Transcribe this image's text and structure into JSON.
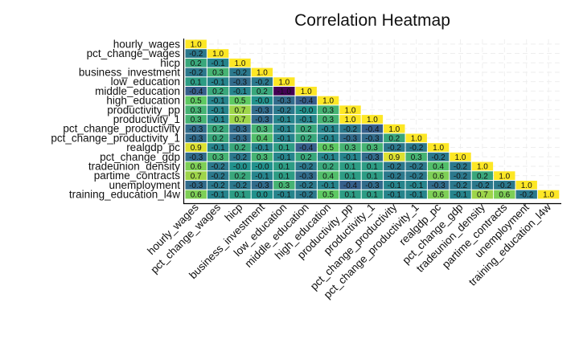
{
  "chart_data": {
    "type": "heatmap",
    "title": "Correlation Heatmap",
    "xlabel": "",
    "ylabel": "",
    "variables": [
      "hourly_wages",
      "pct_change_wages",
      "hicp",
      "business_investment",
      "low_education",
      "middle_education",
      "high_education",
      "productivity_pp",
      "productivity_1",
      "pct_change_productivity",
      "pct_change_productivity_1",
      "realgdp_pc",
      "pct_change_gdp",
      "tradeunion_density",
      "partime_contracts",
      "unemployment",
      "training_education_l4w"
    ],
    "matrix": [
      [
        "1.0"
      ],
      [
        "-0.2",
        "1.0"
      ],
      [
        "0.2",
        "-0.1",
        "1.0"
      ],
      [
        "-0.2",
        "0.3",
        "-0.2",
        "1.0"
      ],
      [
        "0.1",
        "-0.1",
        "-0.3",
        "-0.2",
        "1.0"
      ],
      [
        "-0.4",
        "0.2",
        "-0.1",
        "0.2",
        "-1.0",
        "1.0"
      ],
      [
        "0.5",
        "-0.1",
        "0.5",
        "-0.0",
        "-0.3",
        "-0.4",
        "1.0"
      ],
      [
        "0.3",
        "-0.1",
        "0.7",
        "-0.3",
        "-0.2",
        "-0.0",
        "0.3",
        "1.0"
      ],
      [
        "0.3",
        "-0.1",
        "0.7",
        "-0.3",
        "-0.1",
        "-0.1",
        "0.3",
        "1.0",
        "1.0"
      ],
      [
        "-0.3",
        "0.2",
        "-0.3",
        "0.3",
        "-0.1",
        "0.2",
        "-0.1",
        "-0.2",
        "-0.4",
        "1.0"
      ],
      [
        "-0.3",
        "0.2",
        "-0.3",
        "0.4",
        "-0.1",
        "0.2",
        "-0.1",
        "-0.3",
        "-0.3",
        "0.2",
        "1.0"
      ],
      [
        "0.9",
        "-0.1",
        "0.2",
        "-0.1",
        "0.1",
        "-0.4",
        "0.5",
        "0.3",
        "0.3",
        "-0.2",
        "-0.2",
        "1.0"
      ],
      [
        "-0.3",
        "0.3",
        "-0.2",
        "0.3",
        "-0.1",
        "0.2",
        "-0.1",
        "-0.1",
        "-0.3",
        "0.9",
        "0.3",
        "-0.2",
        "1.0"
      ],
      [
        "0.6",
        "-0.2",
        "-0.0",
        "-0.0",
        "0.1",
        "-0.2",
        "0.2",
        "0.1",
        "0.1",
        "-0.2",
        "-0.2",
        "0.4",
        "-0.2",
        "1.0"
      ],
      [
        "0.7",
        "-0.2",
        "0.2",
        "-0.1",
        "0.1",
        "-0.3",
        "0.4",
        "0.1",
        "0.1",
        "-0.2",
        "-0.2",
        "0.6",
        "-0.2",
        "0.2",
        "1.0"
      ],
      [
        "-0.3",
        "-0.2",
        "-0.2",
        "-0.3",
        "0.3",
        "-0.2",
        "-0.1",
        "-0.4",
        "-0.3",
        "-0.1",
        "-0.1",
        "-0.3",
        "-0.2",
        "-0.2",
        "-0.2",
        "1.0"
      ],
      [
        "0.6",
        "-0.1",
        "0.1",
        "0.0",
        "-0.1",
        "-0.2",
        "0.5",
        "0.1",
        "0.1",
        "-0.1",
        "-0.1",
        "0.6",
        "-0.1",
        "0.7",
        "0.6",
        "-0.2",
        "1.0"
      ]
    ],
    "color_scale": {
      "name": "viridis",
      "min": -1.0,
      "max": 1.0,
      "stops": [
        "#440154",
        "#3b528b",
        "#21918c",
        "#5ec962",
        "#fde725"
      ]
    },
    "label_color": "#111111",
    "grid": true,
    "legend": "none",
    "triangle": "lower"
  }
}
